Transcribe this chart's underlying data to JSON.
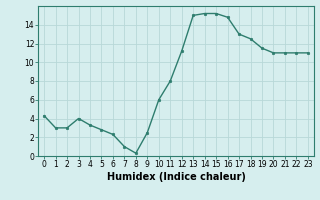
{
  "x": [
    0,
    1,
    2,
    3,
    4,
    5,
    6,
    7,
    8,
    9,
    10,
    11,
    12,
    13,
    14,
    15,
    16,
    17,
    18,
    19,
    20,
    21,
    22,
    23
  ],
  "y": [
    4.3,
    3.0,
    3.0,
    4.0,
    3.3,
    2.8,
    2.3,
    1.0,
    0.3,
    2.5,
    6.0,
    8.0,
    11.2,
    15.0,
    15.2,
    15.2,
    14.8,
    13.0,
    12.5,
    11.5,
    11.0,
    11.0,
    11.0,
    11.0
  ],
  "line_color": "#2e7d6e",
  "marker": "o",
  "marker_size": 1.8,
  "line_width": 1.0,
  "xlabel": "Humidex (Indice chaleur)",
  "xlim": [
    -0.5,
    23.5
  ],
  "ylim": [
    0,
    16
  ],
  "yticks": [
    0,
    2,
    4,
    6,
    8,
    10,
    12,
    14
  ],
  "xtick_labels": [
    "0",
    "1",
    "2",
    "3",
    "4",
    "5",
    "6",
    "7",
    "8",
    "9",
    "10",
    "11",
    "12",
    "13",
    "14",
    "15",
    "16",
    "17",
    "18",
    "19",
    "20",
    "21",
    "22",
    "23"
  ],
  "background_color": "#d6eeee",
  "grid_color": "#b8d8d8",
  "tick_fontsize": 5.5,
  "xlabel_fontsize": 7.0
}
